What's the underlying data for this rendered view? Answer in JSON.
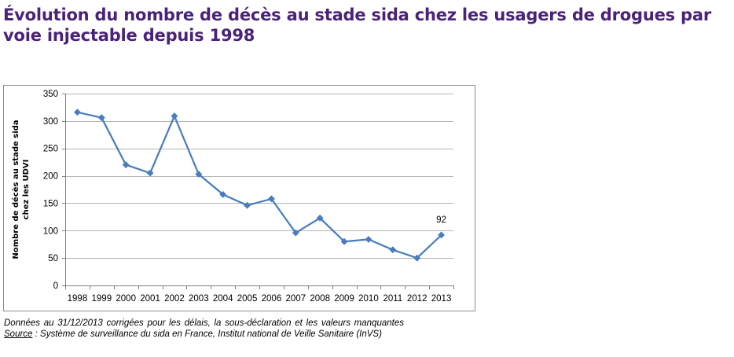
{
  "title": {
    "line1": "Évolution du nombre de décès au stade sida chez les usagers de drogues par",
    "line2": "voie injectable depuis 1998"
  },
  "chart_data": {
    "type": "line",
    "categories": [
      "1998",
      "1999",
      "2000",
      "2001",
      "2002",
      "2003",
      "2004",
      "2005",
      "2006",
      "2007",
      "2008",
      "2009",
      "2010",
      "2011",
      "2012",
      "2013"
    ],
    "series": [
      {
        "values": [
          316,
          306,
          220,
          205,
          309,
          203,
          166,
          146,
          158,
          96,
          123,
          80,
          84,
          65,
          50,
          92
        ]
      }
    ],
    "ylabel_line1": "Nombre de décès au stade sida",
    "ylabel_line2": "chez les UDVI",
    "ylim": [
      0,
      350
    ],
    "yticks": [
      0,
      50,
      100,
      150,
      200,
      250,
      300,
      350
    ],
    "grid": true,
    "data_labels": [
      {
        "category": "2013",
        "value": 92,
        "text": "92"
      }
    ],
    "series_color": "#4a7ebb",
    "grid_color": "#b5b5b5"
  },
  "footer": {
    "note": "Données au 31/12/2013 corrigées pour les délais, la sous-déclaration  et les valeurs manquantes",
    "source_label": "Source",
    "source_text": " : Système de surveillance du sida en France, Institut national de Veille Sanitaire (InVS)"
  },
  "colors": {
    "title": "#4a2379",
    "series": "#4a7ebb"
  }
}
